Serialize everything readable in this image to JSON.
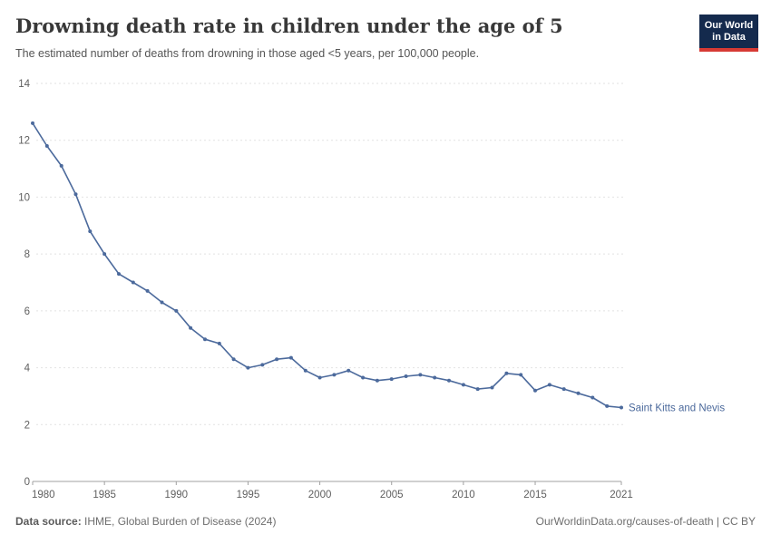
{
  "header": {
    "title": "Drowning death rate in children under the age of 5",
    "subtitle": "The estimated number of deaths from drowning in those aged <5 years, per 100,000 people.",
    "logo": {
      "line1": "Our World",
      "line2": "in Data",
      "bg_color": "#142a4d",
      "bar_color": "#d73a34"
    }
  },
  "chart_data": {
    "type": "line",
    "title": "Drowning death rate in children under the age of 5",
    "xlabel": "",
    "ylabel": "",
    "xlim": [
      1980,
      2021
    ],
    "ylim": [
      0,
      14
    ],
    "x_ticks": [
      1980,
      1985,
      1990,
      1995,
      2000,
      2005,
      2010,
      2015,
      2021
    ],
    "y_ticks": [
      0,
      2,
      4,
      6,
      8,
      10,
      12,
      14
    ],
    "grid": "horizontal-dashed",
    "legend_position": "end-of-line-label",
    "axis_color": "#a0a0a0",
    "grid_color": "#e2e2e2",
    "tick_label_color": "#5f5f5f",
    "series": [
      {
        "name": "Saint Kitts and Nevis",
        "color": "#4c6a9c",
        "x": [
          1980,
          1981,
          1982,
          1983,
          1984,
          1985,
          1986,
          1987,
          1988,
          1989,
          1990,
          1991,
          1992,
          1993,
          1994,
          1995,
          1996,
          1997,
          1998,
          1999,
          2000,
          2001,
          2002,
          2003,
          2004,
          2005,
          2006,
          2007,
          2008,
          2009,
          2010,
          2011,
          2012,
          2013,
          2014,
          2015,
          2016,
          2017,
          2018,
          2019,
          2020,
          2021
        ],
        "values": [
          12.6,
          11.8,
          11.1,
          10.1,
          8.8,
          8.0,
          7.3,
          7.0,
          6.7,
          6.3,
          6.0,
          5.4,
          5.0,
          4.85,
          4.3,
          4.0,
          4.1,
          4.3,
          4.35,
          3.9,
          3.65,
          3.75,
          3.9,
          3.65,
          3.55,
          3.6,
          3.7,
          3.75,
          3.65,
          3.55,
          3.4,
          3.25,
          3.3,
          3.8,
          3.75,
          3.2,
          3.4,
          3.25,
          3.1,
          2.95,
          2.65,
          2.6
        ]
      }
    ]
  },
  "footer": {
    "source_label": "Data source:",
    "source_value": " IHME, Global Burden of Disease (2024)",
    "right_text": "OurWorldinData.org/causes-of-death | CC BY"
  }
}
